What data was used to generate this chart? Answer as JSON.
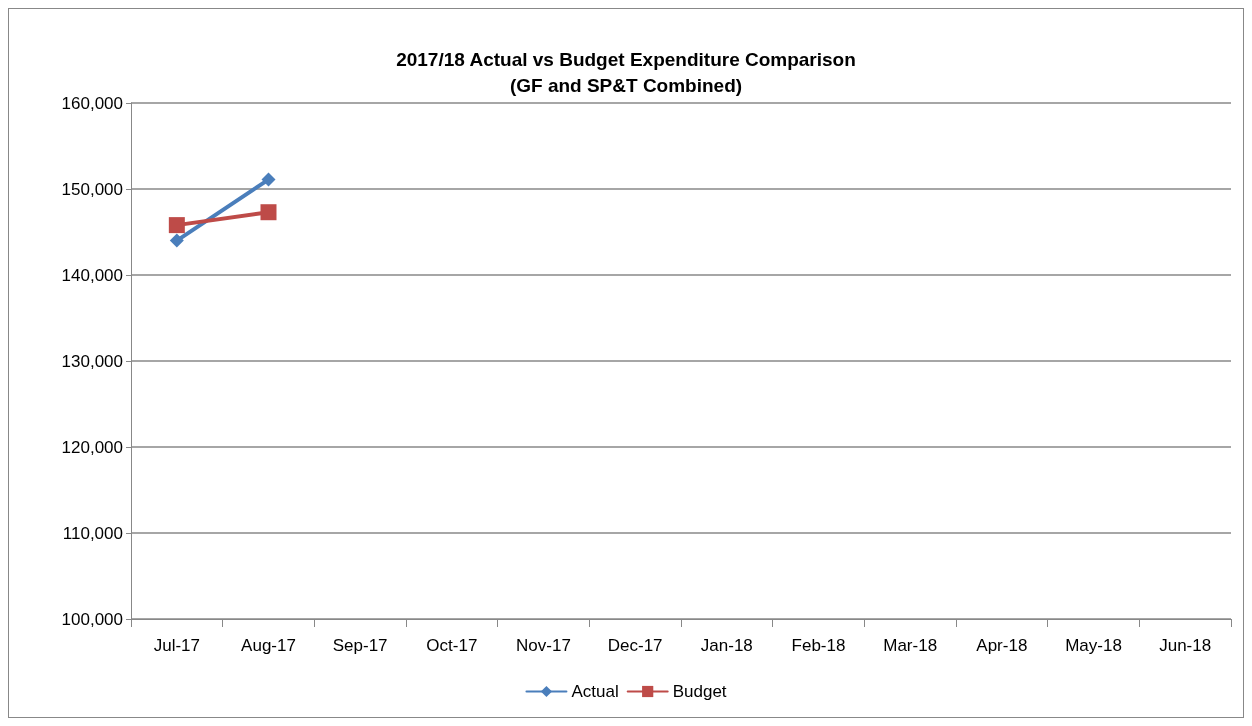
{
  "chart_data": {
    "type": "line",
    "title": "2017/18 Actual vs Budget Expenditure Comparison\n(GF and SP&T Combined)",
    "categories": [
      "Jul-17",
      "Aug-17",
      "Sep-17",
      "Oct-17",
      "Nov-17",
      "Dec-17",
      "Jan-18",
      "Feb-18",
      "Mar-18",
      "Apr-18",
      "May-18",
      "Jun-18"
    ],
    "series": [
      {
        "name": "Actual",
        "color": "#4a7ebb",
        "marker": "diamond",
        "values": [
          144000,
          151100,
          null,
          null,
          null,
          null,
          null,
          null,
          null,
          null,
          null,
          null
        ]
      },
      {
        "name": "Budget",
        "color": "#be4b48",
        "marker": "square",
        "values": [
          145800,
          147300,
          null,
          null,
          null,
          null,
          null,
          null,
          null,
          null,
          null,
          null
        ]
      }
    ],
    "ylim": [
      100000,
      160000
    ],
    "yticks": [
      {
        "value": 100000,
        "label": "100,000"
      },
      {
        "value": 110000,
        "label": "110,000"
      },
      {
        "value": 120000,
        "label": "120,000"
      },
      {
        "value": 130000,
        "label": "130,000"
      },
      {
        "value": 140000,
        "label": "140,000"
      },
      {
        "value": 150000,
        "label": "150,000"
      },
      {
        "value": 160000,
        "label": "160,000"
      }
    ],
    "grid": "y",
    "legend": "bottom"
  }
}
